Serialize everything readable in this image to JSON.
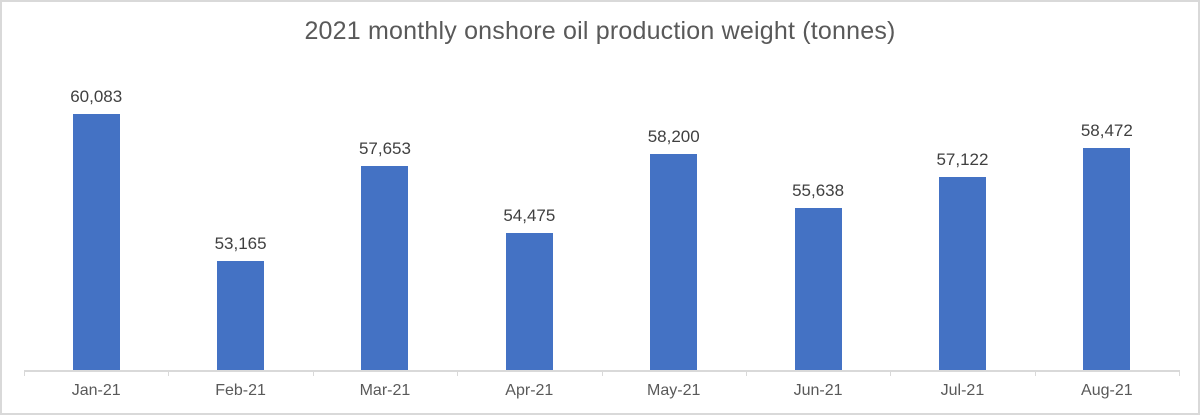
{
  "window": {
    "background_color": "#ffffff",
    "border_color": "#d9d9d9"
  },
  "chart_data": {
    "type": "bar",
    "title": "2021 monthly onshore oil production weight (tonnes)",
    "categories": [
      "Jan-21",
      "Feb-21",
      "Mar-21",
      "Apr-21",
      "May-21",
      "Jun-21",
      "Jul-21",
      "Aug-21"
    ],
    "values": [
      60083,
      53165,
      57653,
      54475,
      58200,
      55638,
      57122,
      58472
    ],
    "data_labels": [
      "60,083",
      "53,165",
      "57,653",
      "54,475",
      "58,200",
      "55,638",
      "57,122",
      "58,472"
    ],
    "xlabel": "",
    "ylabel": "",
    "ylim": [
      48000,
      60500
    ],
    "grid": false,
    "legend": false,
    "y_axis_visible": false,
    "bar_color": "#4472c4",
    "axis_line_color": "#d9d9d9",
    "title_color": "#595959",
    "data_label_color": "#404040",
    "tick_label_color": "#595959"
  }
}
